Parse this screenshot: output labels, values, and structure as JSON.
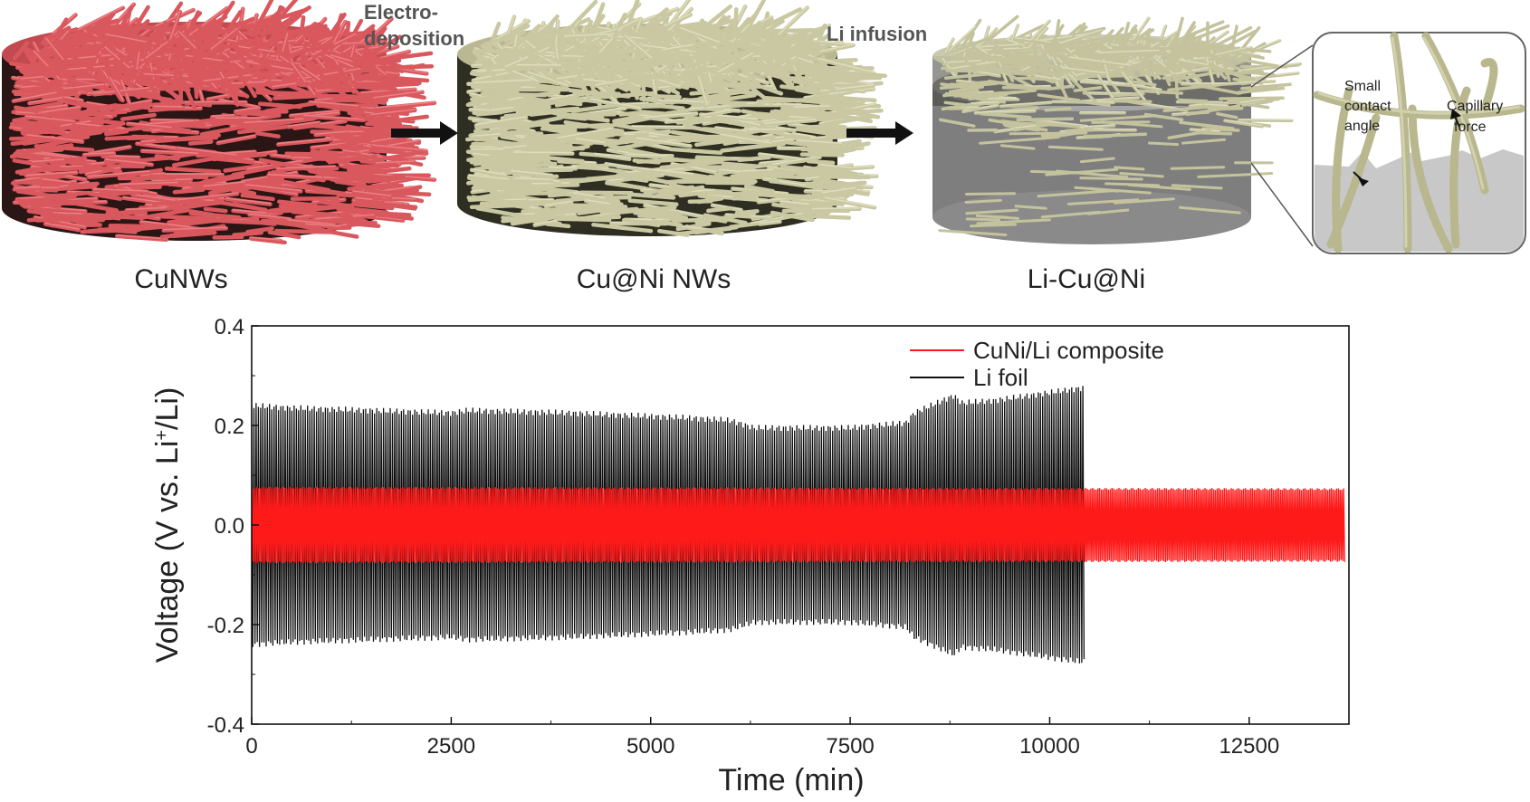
{
  "schematic": {
    "steps": [
      {
        "label": "CuNWs",
        "color": "#d9585e"
      },
      {
        "label": "Cu@Ni NWs",
        "color": "#c9c8a2"
      },
      {
        "label": "Li-Cu@Ni",
        "color": "#b8b8b8"
      }
    ],
    "arrows": [
      {
        "line1": "Electro-",
        "line2": "deposition"
      },
      {
        "line1": "Li infusion",
        "line2": ""
      }
    ],
    "inset": {
      "left_label_line1": "Small",
      "left_label_line2": "contact",
      "left_label_line3": "angle",
      "right_label_line1": "Capillary",
      "right_label_line2": "force"
    }
  },
  "chart_data": {
    "type": "line",
    "xlabel": "Time (min)",
    "ylabel_main": "Voltage (V vs. Li",
    "ylabel_sup": "+",
    "ylabel_end": "/Li)",
    "xlim": [
      0,
      13750
    ],
    "ylim": [
      -0.4,
      0.4
    ],
    "xticks": [
      "0",
      "2500",
      "5000",
      "7500",
      "10000",
      "12500"
    ],
    "xtick_values": [
      0,
      2500,
      5000,
      7500,
      10000,
      12500
    ],
    "yticks": [
      "-0.4",
      "-0.2",
      "0.0",
      "0.2",
      "0.4"
    ],
    "ytick_values": [
      -0.4,
      -0.2,
      0.0,
      0.2,
      0.4
    ],
    "legend_position": "top-right",
    "grid": false,
    "series": [
      {
        "name": "Li foil",
        "color": "#111111",
        "envelope_x": [
          0,
          500,
          2500,
          2700,
          4000,
          5500,
          6000,
          6100,
          6300,
          7500,
          8200,
          8300,
          8800,
          8900,
          9300,
          10400
        ],
        "envelope_y": [
          0.24,
          0.235,
          0.225,
          0.23,
          0.225,
          0.215,
          0.21,
          0.205,
          0.195,
          0.195,
          0.205,
          0.225,
          0.26,
          0.245,
          0.25,
          0.275
        ],
        "end_x": 10430
      },
      {
        "name": "CuNi/Li composite",
        "color": "#ff1a1a",
        "envelope_x": [
          0,
          13700
        ],
        "envelope_y": [
          0.075,
          0.072
        ],
        "end_x": 13700
      }
    ]
  }
}
